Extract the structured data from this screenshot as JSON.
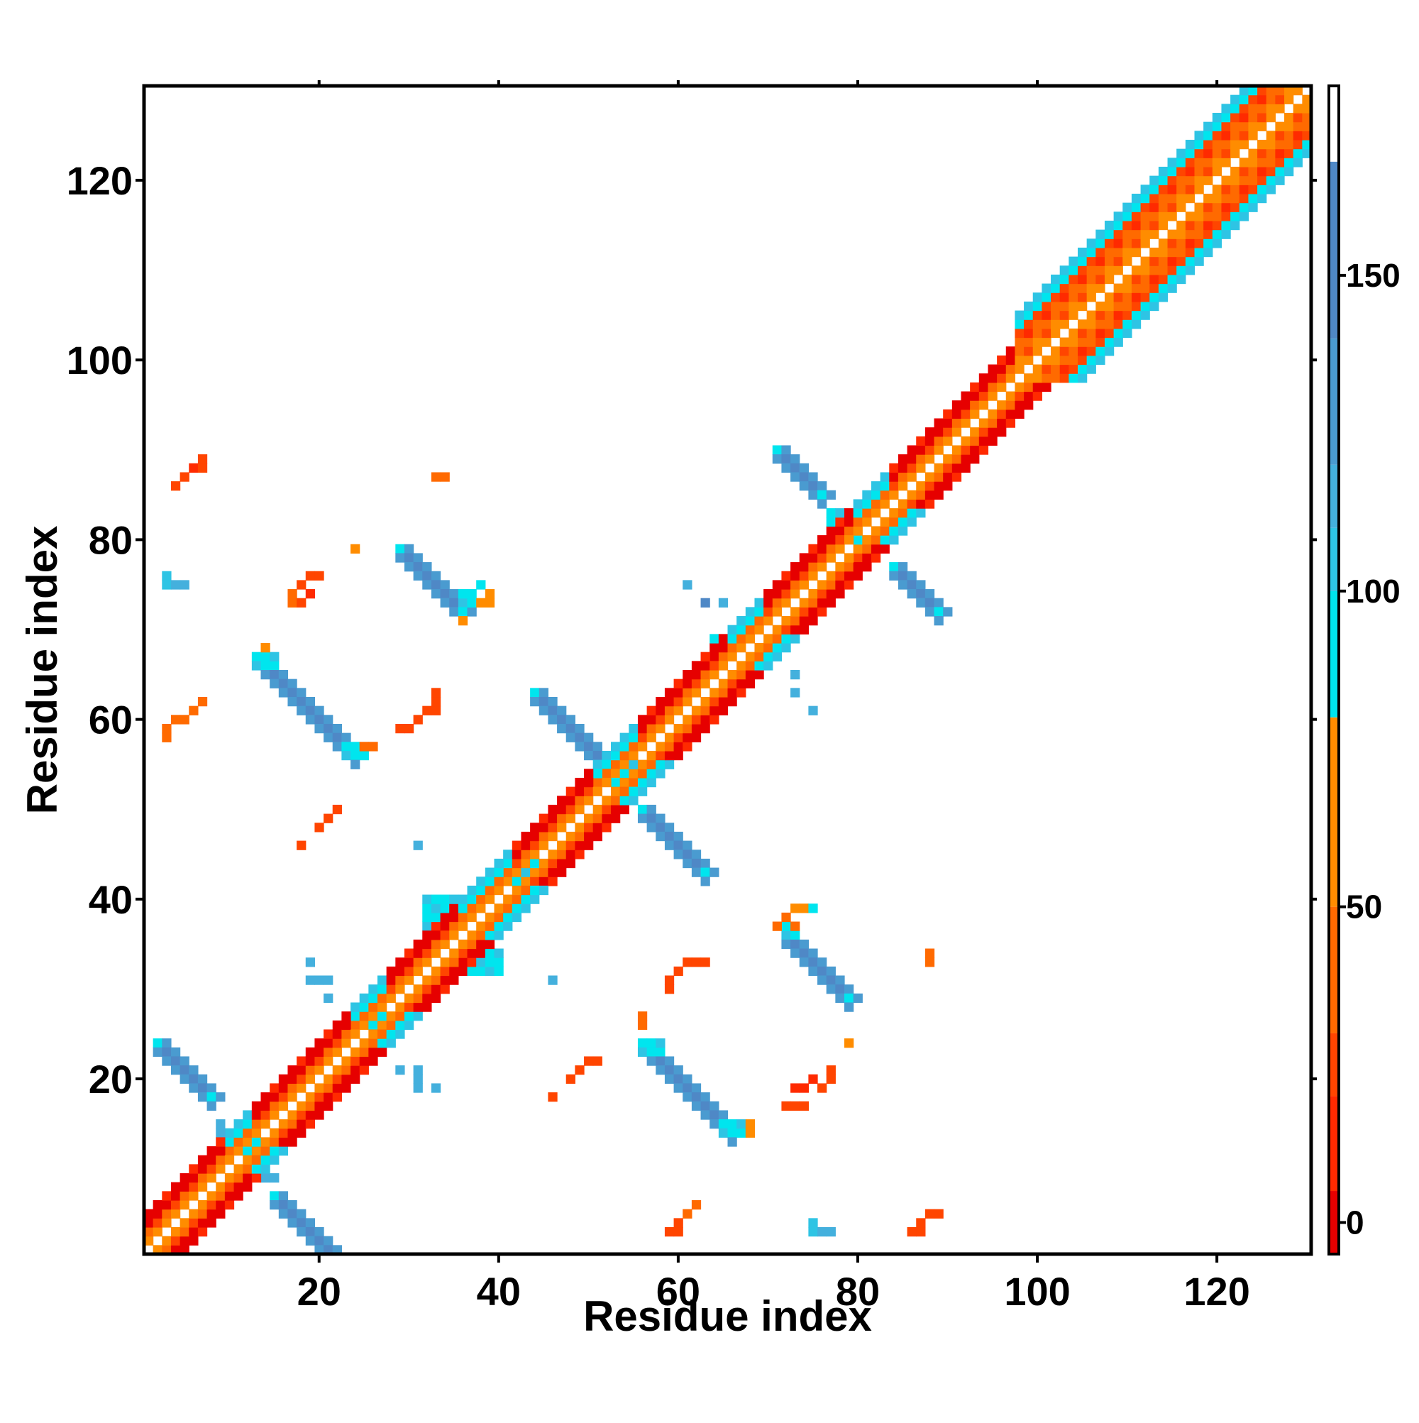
{
  "chart_data": {
    "type": "heatmap",
    "title": "",
    "xlabel": "Residue index",
    "ylabel": "Residue index",
    "xlim": [
      1,
      130
    ],
    "ylim": [
      1,
      130
    ],
    "x_ticks": [
      20,
      40,
      60,
      80,
      100,
      120
    ],
    "y_ticks": [
      20,
      40,
      60,
      80,
      100,
      120
    ],
    "grid": false,
    "legend": "none",
    "colorbar": {
      "placement": "right",
      "range": [
        -5,
        180
      ],
      "ticks": [
        0,
        50,
        100,
        150
      ],
      "bands": [
        {
          "from": -5,
          "to": 5,
          "color": "#e60000"
        },
        {
          "from": 5,
          "to": 20,
          "color": "#ff2a00"
        },
        {
          "from": 20,
          "to": 30,
          "color": "#ff4500"
        },
        {
          "from": 30,
          "to": 50,
          "color": "#ff6a00"
        },
        {
          "from": 50,
          "to": 80,
          "color": "#ff8c00"
        },
        {
          "from": 80,
          "to": 100,
          "color": "#00e5ee"
        },
        {
          "from": 100,
          "to": 110,
          "color": "#2ec4e4"
        },
        {
          "from": 110,
          "to": 120,
          "color": "#44b0dd"
        },
        {
          "from": 120,
          "to": 140,
          "color": "#4a9bd0"
        },
        {
          "from": 140,
          "to": 168,
          "color": "#4f88c6"
        },
        {
          "from": 168,
          "to": 180,
          "color": "#ffffff"
        }
      ]
    },
    "cell_colors": {
      "red": "#e60000",
      "red_orange": "#ff2a00",
      "orange_red": "#ff4500",
      "orange": "#ff6a00",
      "dark_orange": "#ff8c00",
      "cyan": "#00e5ee",
      "light_blue": "#2ec4e4",
      "sky_blue": "#44b0dd",
      "steel_blue": "#4a9bd0",
      "blue": "#4f88c6"
    },
    "diagonal_segments": [
      {
        "from": 1,
        "to": 10,
        "pattern": "helix"
      },
      {
        "from": 10,
        "to": 13,
        "pattern": "turn"
      },
      {
        "from": 13,
        "to": 24,
        "pattern": "helix"
      },
      {
        "from": 24,
        "to": 28,
        "pattern": "turn"
      },
      {
        "from": 28,
        "to": 36,
        "pattern": "helix"
      },
      {
        "from": 36,
        "to": 42,
        "pattern": "turn"
      },
      {
        "from": 42,
        "to": 51,
        "pattern": "helix"
      },
      {
        "from": 51,
        "to": 56,
        "pattern": "turn"
      },
      {
        "from": 56,
        "to": 66,
        "pattern": "helix"
      },
      {
        "from": 66,
        "to": 70,
        "pattern": "turn"
      },
      {
        "from": 70,
        "to": 80,
        "pattern": "helix"
      },
      {
        "from": 80,
        "to": 84,
        "pattern": "turn"
      },
      {
        "from": 84,
        "to": 98,
        "pattern": "helix"
      },
      {
        "from": 98,
        "to": 130,
        "pattern": "wide"
      }
    ],
    "anti_diagonal_segments": [
      {
        "x_start": 2,
        "y_start": 24,
        "length": 7,
        "color": "blue"
      },
      {
        "x_start": 15,
        "y_start": 7,
        "length": 9,
        "color": "blue"
      },
      {
        "x_start": 13,
        "y_start": 67,
        "length": 12,
        "color": "blue"
      },
      {
        "x_start": 29,
        "y_start": 79,
        "length": 8,
        "color": "blue"
      },
      {
        "x_start": 44,
        "y_start": 63,
        "length": 10,
        "color": "blue"
      },
      {
        "x_start": 56,
        "y_start": 50,
        "length": 8,
        "color": "blue"
      },
      {
        "x_start": 56,
        "y_start": 24,
        "length": 11,
        "color": "blue"
      },
      {
        "x_start": 72,
        "y_start": 36,
        "length": 8,
        "color": "blue"
      },
      {
        "x_start": 71,
        "y_start": 90,
        "length": 6,
        "color": "blue"
      },
      {
        "x_start": 84,
        "y_start": 77,
        "length": 6,
        "color": "blue"
      }
    ],
    "cyan_blobs": [
      {
        "x": 10,
        "y": 12,
        "w": 4,
        "h": 3
      },
      {
        "x": 24,
        "y": 26,
        "w": 4,
        "h": 3
      },
      {
        "x": 32,
        "y": 37,
        "w": 4,
        "h": 4
      },
      {
        "x": 36,
        "y": 32,
        "w": 5,
        "h": 3
      },
      {
        "x": 41,
        "y": 42,
        "w": 5,
        "h": 3
      },
      {
        "x": 51,
        "y": 53,
        "w": 5,
        "h": 3
      },
      {
        "x": 77,
        "y": 81,
        "w": 3,
        "h": 3
      },
      {
        "x": 80,
        "y": 78,
        "w": 3,
        "h": 3
      },
      {
        "x": 64,
        "y": 67,
        "w": 3,
        "h": 3
      },
      {
        "x": 13,
        "y": 66,
        "w": 3,
        "h": 2
      },
      {
        "x": 23,
        "y": 56,
        "w": 3,
        "h": 2
      },
      {
        "x": 56,
        "y": 23,
        "w": 3,
        "h": 2
      },
      {
        "x": 65,
        "y": 14,
        "w": 3,
        "h": 2
      },
      {
        "x": 72,
        "y": 36,
        "w": 2,
        "h": 2
      },
      {
        "x": 36,
        "y": 73,
        "w": 2,
        "h": 2
      }
    ],
    "isolated_cells": [
      {
        "x": 4,
        "y": 86,
        "color": "orange_red"
      },
      {
        "x": 5,
        "y": 87,
        "color": "orange_red"
      },
      {
        "x": 6,
        "y": 88,
        "color": "red_orange"
      },
      {
        "x": 7,
        "y": 88,
        "color": "orange_red"
      },
      {
        "x": 7,
        "y": 89,
        "color": "orange_red"
      },
      {
        "x": 34,
        "y": 87,
        "color": "orange"
      },
      {
        "x": 33,
        "y": 87,
        "color": "orange"
      },
      {
        "x": 24,
        "y": 79,
        "color": "dark_orange"
      },
      {
        "x": 3,
        "y": 76,
        "color": "light_blue"
      },
      {
        "x": 3,
        "y": 75,
        "color": "light_blue"
      },
      {
        "x": 4,
        "y": 75,
        "color": "sky_blue"
      },
      {
        "x": 5,
        "y": 75,
        "color": "sky_blue"
      },
      {
        "x": 17,
        "y": 74,
        "color": "orange"
      },
      {
        "x": 18,
        "y": 75,
        "color": "orange_red"
      },
      {
        "x": 19,
        "y": 76,
        "color": "orange_red"
      },
      {
        "x": 20,
        "y": 76,
        "color": "orange_red"
      },
      {
        "x": 17,
        "y": 73,
        "color": "orange"
      },
      {
        "x": 18,
        "y": 73,
        "color": "orange_red"
      },
      {
        "x": 19,
        "y": 74,
        "color": "red_orange"
      },
      {
        "x": 3,
        "y": 58,
        "color": "orange"
      },
      {
        "x": 3,
        "y": 59,
        "color": "orange"
      },
      {
        "x": 4,
        "y": 60,
        "color": "orange"
      },
      {
        "x": 5,
        "y": 60,
        "color": "orange"
      },
      {
        "x": 6,
        "y": 61,
        "color": "orange"
      },
      {
        "x": 7,
        "y": 62,
        "color": "orange"
      },
      {
        "x": 29,
        "y": 59,
        "color": "orange_red"
      },
      {
        "x": 30,
        "y": 59,
        "color": "orange_red"
      },
      {
        "x": 31,
        "y": 60,
        "color": "orange_red"
      },
      {
        "x": 32,
        "y": 61,
        "color": "orange_red"
      },
      {
        "x": 33,
        "y": 61,
        "color": "orange_red"
      },
      {
        "x": 33,
        "y": 62,
        "color": "orange_red"
      },
      {
        "x": 33,
        "y": 63,
        "color": "orange_red"
      },
      {
        "x": 18,
        "y": 46,
        "color": "orange_red"
      },
      {
        "x": 20,
        "y": 48,
        "color": "orange_red"
      },
      {
        "x": 21,
        "y": 49,
        "color": "orange_red"
      },
      {
        "x": 22,
        "y": 50,
        "color": "orange_red"
      },
      {
        "x": 31,
        "y": 46,
        "color": "sky_blue"
      },
      {
        "x": 19,
        "y": 33,
        "color": "sky_blue"
      },
      {
        "x": 19,
        "y": 31,
        "color": "sky_blue"
      },
      {
        "x": 20,
        "y": 31,
        "color": "sky_blue"
      },
      {
        "x": 21,
        "y": 31,
        "color": "sky_blue"
      },
      {
        "x": 21,
        "y": 29,
        "color": "sky_blue"
      },
      {
        "x": 46,
        "y": 31,
        "color": "sky_blue"
      },
      {
        "x": 29,
        "y": 21,
        "color": "sky_blue"
      },
      {
        "x": 31,
        "y": 21,
        "color": "sky_blue"
      },
      {
        "x": 31,
        "y": 20,
        "color": "sky_blue"
      },
      {
        "x": 31,
        "y": 19,
        "color": "sky_blue"
      },
      {
        "x": 33,
        "y": 19,
        "color": "sky_blue"
      },
      {
        "x": 9,
        "y": 14,
        "color": "sky_blue"
      },
      {
        "x": 9,
        "y": 15,
        "color": "sky_blue"
      },
      {
        "x": 14,
        "y": 9,
        "color": "sky_blue"
      },
      {
        "x": 15,
        "y": 9,
        "color": "sky_blue"
      },
      {
        "x": 46,
        "y": 18,
        "color": "orange_red"
      },
      {
        "x": 48,
        "y": 20,
        "color": "orange_red"
      },
      {
        "x": 49,
        "y": 21,
        "color": "orange_red"
      },
      {
        "x": 50,
        "y": 22,
        "color": "orange_red"
      },
      {
        "x": 51,
        "y": 22,
        "color": "orange_red"
      },
      {
        "x": 59,
        "y": 30,
        "color": "orange_red"
      },
      {
        "x": 59,
        "y": 31,
        "color": "orange_red"
      },
      {
        "x": 60,
        "y": 32,
        "color": "orange_red"
      },
      {
        "x": 61,
        "y": 33,
        "color": "orange_red"
      },
      {
        "x": 62,
        "y": 33,
        "color": "orange_red"
      },
      {
        "x": 63,
        "y": 33,
        "color": "orange_red"
      },
      {
        "x": 56,
        "y": 27,
        "color": "orange"
      },
      {
        "x": 56,
        "y": 26,
        "color": "orange"
      },
      {
        "x": 59,
        "y": 3,
        "color": "orange_red"
      },
      {
        "x": 60,
        "y": 3,
        "color": "orange_red"
      },
      {
        "x": 60,
        "y": 4,
        "color": "orange_red"
      },
      {
        "x": 61,
        "y": 5,
        "color": "orange"
      },
      {
        "x": 62,
        "y": 6,
        "color": "orange"
      },
      {
        "x": 61,
        "y": 75,
        "color": "sky_blue"
      },
      {
        "x": 63,
        "y": 73,
        "color": "blue"
      },
      {
        "x": 65,
        "y": 73,
        "color": "sky_blue"
      },
      {
        "x": 73,
        "y": 65,
        "color": "sky_blue"
      },
      {
        "x": 73,
        "y": 63,
        "color": "sky_blue"
      },
      {
        "x": 75,
        "y": 61,
        "color": "sky_blue"
      },
      {
        "x": 73,
        "y": 39,
        "color": "dark_orange"
      },
      {
        "x": 74,
        "y": 39,
        "color": "dark_orange"
      },
      {
        "x": 75,
        "y": 39,
        "color": "cyan"
      },
      {
        "x": 72,
        "y": 38,
        "color": "orange"
      },
      {
        "x": 71,
        "y": 37,
        "color": "orange"
      },
      {
        "x": 73,
        "y": 37,
        "color": "orange"
      },
      {
        "x": 88,
        "y": 33,
        "color": "orange"
      },
      {
        "x": 88,
        "y": 34,
        "color": "orange"
      },
      {
        "x": 79,
        "y": 24,
        "color": "dark_orange"
      },
      {
        "x": 72,
        "y": 17,
        "color": "orange_red"
      },
      {
        "x": 73,
        "y": 17,
        "color": "orange_red"
      },
      {
        "x": 74,
        "y": 17,
        "color": "orange_red"
      },
      {
        "x": 73,
        "y": 19,
        "color": "red_orange"
      },
      {
        "x": 74,
        "y": 19,
        "color": "red_orange"
      },
      {
        "x": 75,
        "y": 20,
        "color": "red_orange"
      },
      {
        "x": 76,
        "y": 19,
        "color": "orange_red"
      },
      {
        "x": 77,
        "y": 20,
        "color": "orange_red"
      },
      {
        "x": 77,
        "y": 21,
        "color": "orange_red"
      },
      {
        "x": 75,
        "y": 4,
        "color": "light_blue"
      },
      {
        "x": 75,
        "y": 3,
        "color": "light_blue"
      },
      {
        "x": 76,
        "y": 3,
        "color": "sky_blue"
      },
      {
        "x": 77,
        "y": 3,
        "color": "sky_blue"
      },
      {
        "x": 86,
        "y": 3,
        "color": "orange_red"
      },
      {
        "x": 87,
        "y": 3,
        "color": "orange_red"
      },
      {
        "x": 87,
        "y": 4,
        "color": "orange_red"
      },
      {
        "x": 88,
        "y": 5,
        "color": "orange_red"
      },
      {
        "x": 89,
        "y": 5,
        "color": "orange_red"
      },
      {
        "x": 38,
        "y": 75,
        "color": "cyan"
      },
      {
        "x": 38,
        "y": 73,
        "color": "dark_orange"
      },
      {
        "x": 39,
        "y": 73,
        "color": "dark_orange"
      },
      {
        "x": 39,
        "y": 74,
        "color": "dark_orange"
      },
      {
        "x": 36,
        "y": 71,
        "color": "dark_orange"
      },
      {
        "x": 14,
        "y": 68,
        "color": "dark_orange"
      },
      {
        "x": 25,
        "y": 57,
        "color": "orange"
      },
      {
        "x": 26,
        "y": 57,
        "color": "orange"
      },
      {
        "x": 68,
        "y": 14,
        "color": "dark_orange"
      },
      {
        "x": 68,
        "y": 15,
        "color": "dark_orange"
      }
    ]
  }
}
